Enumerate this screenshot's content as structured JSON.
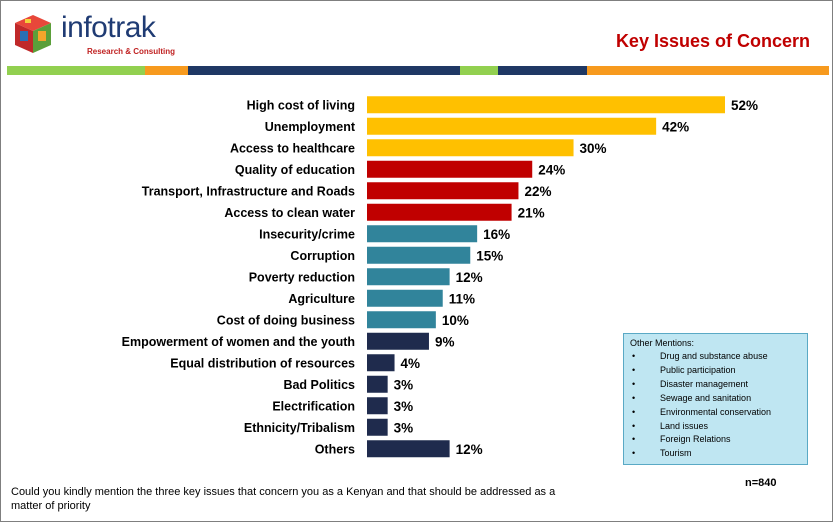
{
  "header": {
    "brand_name": "infotrak",
    "brand_tagline": "Research & Consulting",
    "title": "Key Issues of Concern"
  },
  "colors": {
    "gold": "#FFC000",
    "red": "#C00000",
    "teal": "#31849B",
    "navy": "#1F2B4D",
    "title_red": "#C00000",
    "stripe_green": "#92D050",
    "stripe_orange": "#F79A1E",
    "stripe_navy": "#1F3864"
  },
  "chart_data": {
    "type": "bar",
    "orientation": "horizontal",
    "title": "Key Issues of Concern",
    "value_suffix": "%",
    "categories": [
      "High cost of living",
      "Unemployment",
      "Access to healthcare",
      "Quality of education",
      "Transport, Infrastructure and Roads",
      "Access to clean water",
      "Insecurity/crime",
      "Corruption",
      "Poverty reduction",
      "Agriculture",
      "Cost of doing business",
      "Empowerment of women and the youth",
      "Equal distribution of resources",
      "Bad Politics",
      "Electrification",
      "Ethnicity/Tribalism",
      "Others"
    ],
    "values": [
      52,
      42,
      30,
      24,
      22,
      21,
      16,
      15,
      12,
      11,
      10,
      9,
      4,
      3,
      3,
      3,
      12
    ],
    "value_labels": [
      "52%",
      "42%",
      "30%",
      "24%",
      "22%",
      "21%",
      "16%",
      "15%",
      "12%",
      "11%",
      "10%",
      "9%",
      "4%",
      "3%",
      "3%",
      "3%",
      "12%"
    ],
    "bar_colors": [
      "gold",
      "gold",
      "gold",
      "red",
      "red",
      "red",
      "teal",
      "teal",
      "teal",
      "teal",
      "teal",
      "navy",
      "navy",
      "navy",
      "navy",
      "navy",
      "navy"
    ],
    "xlim": [
      0,
      52
    ],
    "grid": false,
    "legend": "none"
  },
  "other_mentions": {
    "title": "Other Mentions:",
    "items": [
      "Drug and substance abuse",
      "Public participation",
      "Disaster management",
      "Sewage and sanitation",
      "Environmental conservation",
      "Land issues",
      "Foreign Relations",
      "Tourism"
    ]
  },
  "sample_size": "n=840",
  "question": "Could you kindly mention the three key issues that concern you as a Kenyan and that should be addressed as a matter of priority"
}
